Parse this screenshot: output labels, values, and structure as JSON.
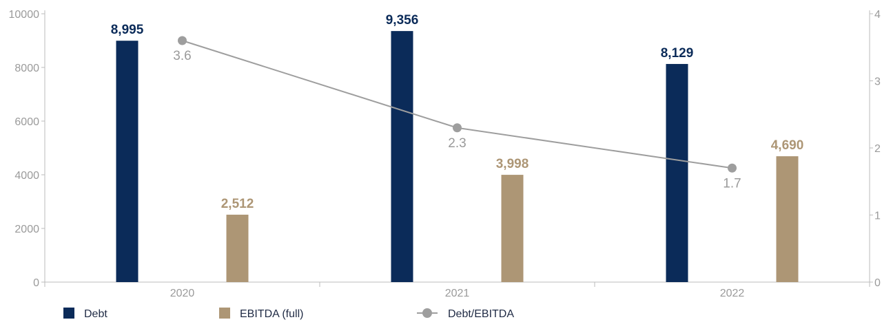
{
  "chart_data": {
    "type": "bar",
    "categories": [
      "2020",
      "2021",
      "2022"
    ],
    "series": [
      {
        "name": "Debt",
        "kind": "bar",
        "axis": "left",
        "values": [
          8995,
          9356,
          8129
        ],
        "labels": [
          "8,995",
          "9,356",
          "8,129"
        ],
        "color": "#0b2b59"
      },
      {
        "name": "EBITDA (full)",
        "kind": "bar",
        "axis": "left",
        "values": [
          2512,
          3998,
          4690
        ],
        "labels": [
          "2,512",
          "3,998",
          "4,690"
        ],
        "color": "#ad9675"
      },
      {
        "name": "Debt/EBITDA",
        "kind": "line",
        "axis": "right",
        "values": [
          3.6,
          2.3,
          1.7
        ],
        "labels": [
          "3.6",
          "2.3",
          "1.7"
        ],
        "color": "#9e9e9e"
      }
    ],
    "y_left": {
      "ylim": [
        0,
        10000
      ],
      "ticks": [
        "0",
        "2000",
        "4000",
        "6000",
        "8000",
        "10000"
      ]
    },
    "y_right": {
      "ylim": [
        0,
        4
      ],
      "ticks": [
        "0",
        "1",
        "2",
        "3",
        "4"
      ]
    },
    "legend": [
      "Debt",
      "EBITDA (full)",
      "Debt/EBITDA"
    ],
    "legend_position": "bottom-left",
    "grid": false
  }
}
